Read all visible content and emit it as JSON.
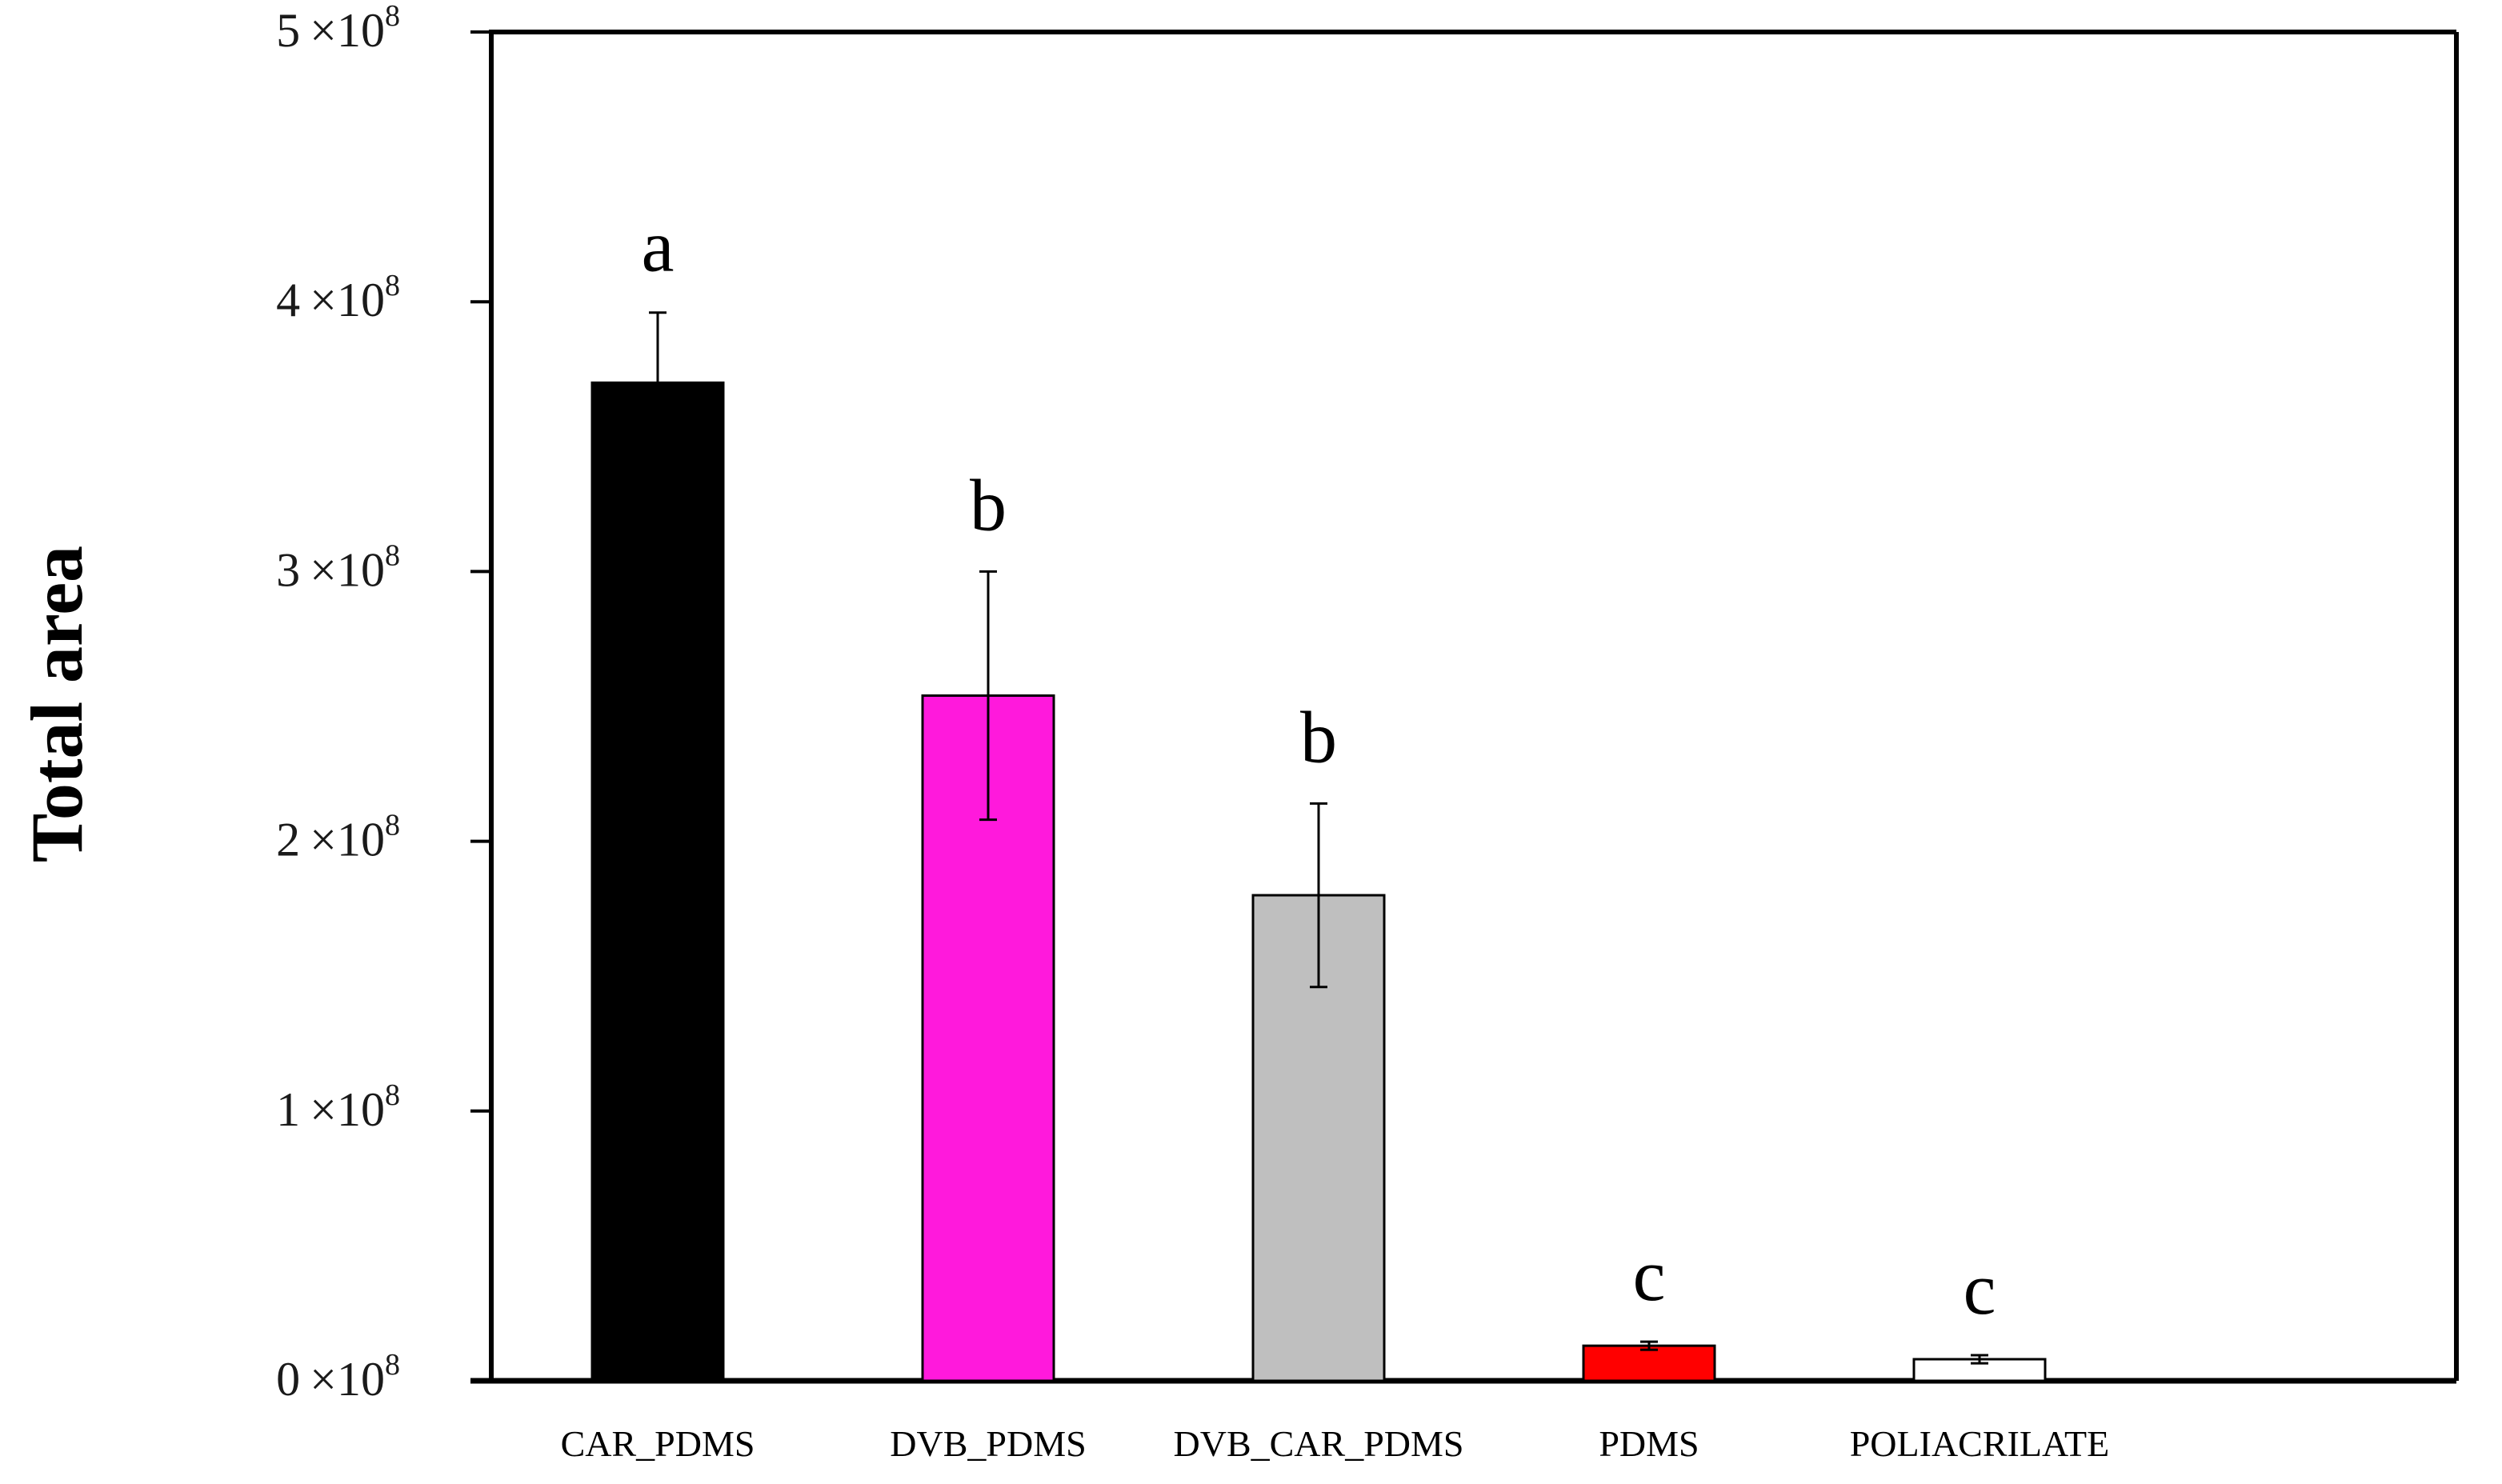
{
  "chart_data": {
    "type": "bar",
    "title": "",
    "xlabel": "",
    "ylabel": "Total area",
    "ylim": [
      0,
      500000000
    ],
    "grid": false,
    "y_ticks": [
      {
        "value": 0,
        "mantissa": "0",
        "times": "×",
        "base": "10",
        "exponent": "8"
      },
      {
        "value": 100000000,
        "mantissa": "1",
        "times": "×",
        "base": "10",
        "exponent": "8"
      },
      {
        "value": 200000000,
        "mantissa": "2",
        "times": "×",
        "base": "10",
        "exponent": "8"
      },
      {
        "value": 300000000,
        "mantissa": "3",
        "times": "×",
        "base": "10",
        "exponent": "8"
      },
      {
        "value": 400000000,
        "mantissa": "4",
        "times": "×",
        "base": "10",
        "exponent": "8"
      },
      {
        "value": 500000000,
        "mantissa": "5",
        "times": "×",
        "base": "10",
        "exponent": "8"
      }
    ],
    "categories": [
      "CAR_PDMS",
      "DVB_PDMS",
      "DVB_CAR_PDMS",
      "PDMS",
      "POLIACRILATE"
    ],
    "values": [
      370000000,
      254000000,
      180000000,
      13000000,
      8000000
    ],
    "errors": [
      26000000,
      46000000,
      34000000,
      1500000,
      1500000
    ],
    "significance_letters": [
      "a",
      "b",
      "b",
      "c",
      "c"
    ],
    "colors": [
      "#000000",
      "#ff19dc",
      "#bfbfbf",
      "#ff0000",
      "#ffffff"
    ]
  }
}
